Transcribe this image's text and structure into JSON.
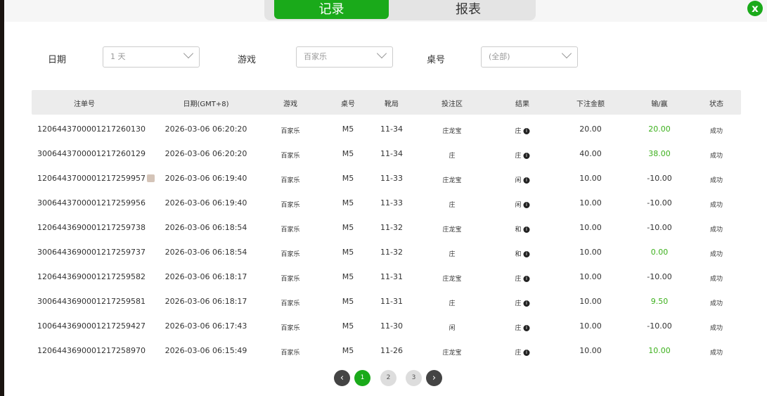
{
  "tabs": {
    "records": "记录",
    "report": "报表"
  },
  "close_label": "x",
  "filters": {
    "date_label": "日期",
    "date_value": "1 天",
    "game_label": "游戏",
    "game_value": "百家乐",
    "table_label": "桌号",
    "table_value": "(全部)"
  },
  "columns": [
    "注单号",
    "日期(GMT+8)",
    "游戏",
    "桌号",
    "靴局",
    "投注区",
    "结果",
    "下注金额",
    "输/赢",
    "状态"
  ],
  "rows": [
    {
      "id": "1206443700001217260130",
      "date": "2026-03-06 06:20:20",
      "game": "百家乐",
      "table": "M5",
      "shoe": "11-34",
      "area": "庄龙宝",
      "result": "庄",
      "amount": "20.00",
      "winloss": "20.00",
      "status": "成功",
      "win": true
    },
    {
      "id": "3006443700001217260129",
      "date": "2026-03-06 06:20:20",
      "game": "百家乐",
      "table": "M5",
      "shoe": "11-34",
      "area": "庄",
      "result": "庄",
      "amount": "40.00",
      "winloss": "38.00",
      "status": "成功",
      "win": true
    },
    {
      "id": "1206443700001217259957",
      "date": "2026-03-06 06:19:40",
      "game": "百家乐",
      "table": "M5",
      "shoe": "11-33",
      "area": "庄龙宝",
      "result": "闲",
      "amount": "10.00",
      "winloss": "-10.00",
      "status": "成功",
      "win": false,
      "copy": true
    },
    {
      "id": "3006443700001217259956",
      "date": "2026-03-06 06:19:40",
      "game": "百家乐",
      "table": "M5",
      "shoe": "11-33",
      "area": "庄",
      "result": "闲",
      "amount": "10.00",
      "winloss": "-10.00",
      "status": "成功",
      "win": false
    },
    {
      "id": "1206443690001217259738",
      "date": "2026-03-06 06:18:54",
      "game": "百家乐",
      "table": "M5",
      "shoe": "11-32",
      "area": "庄龙宝",
      "result": "和",
      "amount": "10.00",
      "winloss": "-10.00",
      "status": "成功",
      "win": false
    },
    {
      "id": "3006443690001217259737",
      "date": "2026-03-06 06:18:54",
      "game": "百家乐",
      "table": "M5",
      "shoe": "11-32",
      "area": "庄",
      "result": "和",
      "amount": "10.00",
      "winloss": "0.00",
      "status": "成功",
      "win": true
    },
    {
      "id": "1206443690001217259582",
      "date": "2026-03-06 06:18:17",
      "game": "百家乐",
      "table": "M5",
      "shoe": "11-31",
      "area": "庄龙宝",
      "result": "庄",
      "amount": "10.00",
      "winloss": "-10.00",
      "status": "成功",
      "win": false
    },
    {
      "id": "3006443690001217259581",
      "date": "2026-03-06 06:18:17",
      "game": "百家乐",
      "table": "M5",
      "shoe": "11-31",
      "area": "庄",
      "result": "庄",
      "amount": "10.00",
      "winloss": "9.50",
      "status": "成功",
      "win": true
    },
    {
      "id": "1006443690001217259427",
      "date": "2026-03-06 06:17:43",
      "game": "百家乐",
      "table": "M5",
      "shoe": "11-30",
      "area": "闲",
      "result": "庄",
      "amount": "10.00",
      "winloss": "-10.00",
      "status": "成功",
      "win": false
    },
    {
      "id": "1206443690001217258970",
      "date": "2026-03-06 06:15:49",
      "game": "百家乐",
      "table": "M5",
      "shoe": "11-26",
      "area": "庄龙宝",
      "result": "庄",
      "amount": "10.00",
      "winloss": "10.00",
      "status": "成功",
      "win": true
    }
  ],
  "pagination": {
    "prev": "‹",
    "pages": [
      "1",
      "2",
      "3"
    ],
    "current": "1",
    "next": "›"
  },
  "colors": {
    "accent": "#1aaa1a",
    "win": "#3cb01c"
  }
}
